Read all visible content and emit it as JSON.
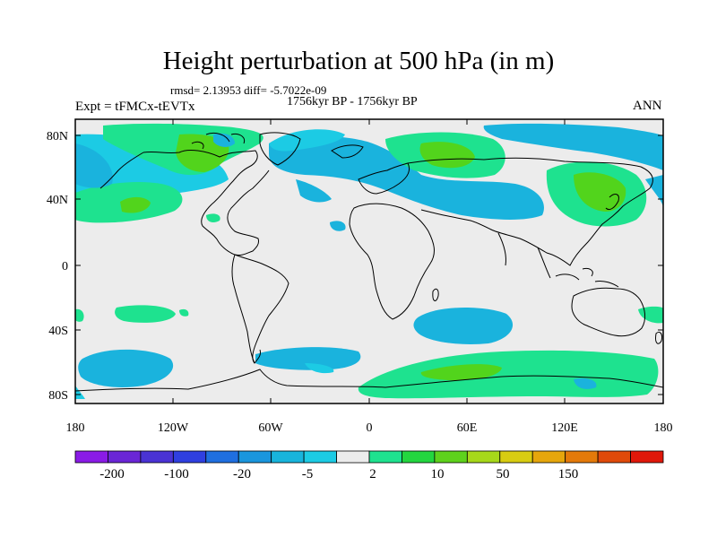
{
  "title": "Height perturbation at 500 hPa (in m)",
  "stats": "rmsd= 2.13953 diff= -5.7022e-09",
  "period": "1756kyr BP - 1756kyr BP",
  "experiment": "Expt = tFMCx-tEVTx",
  "season": "ANN",
  "lat_ticks": [
    "80N",
    "40N",
    "0",
    "40S",
    "80S"
  ],
  "lon_ticks": [
    "180",
    "120W",
    "60W",
    "0",
    "60E",
    "120E",
    "180"
  ],
  "colorbar": {
    "colors": [
      "#8a1be6",
      "#6a26d6",
      "#4a33d4",
      "#2f3fe0",
      "#1f6fe0",
      "#1a96dd",
      "#18b4dc",
      "#1ccbe4",
      "#ececec",
      "#1ee28f",
      "#23d63f",
      "#5ed21c",
      "#a6d81a",
      "#d8cc12",
      "#e6a60c",
      "#e47a0a",
      "#e04a0a",
      "#e0180a"
    ],
    "labels": [
      "-200",
      "-100",
      "-20",
      "-5",
      "2",
      "10",
      "50",
      "150"
    ]
  },
  "map_colors": {
    "background": "#ececec",
    "cyan": "#1ab3dd",
    "light_cyan": "#1ccbe4",
    "teal": "#1ee28f",
    "green": "#52d41c"
  }
}
